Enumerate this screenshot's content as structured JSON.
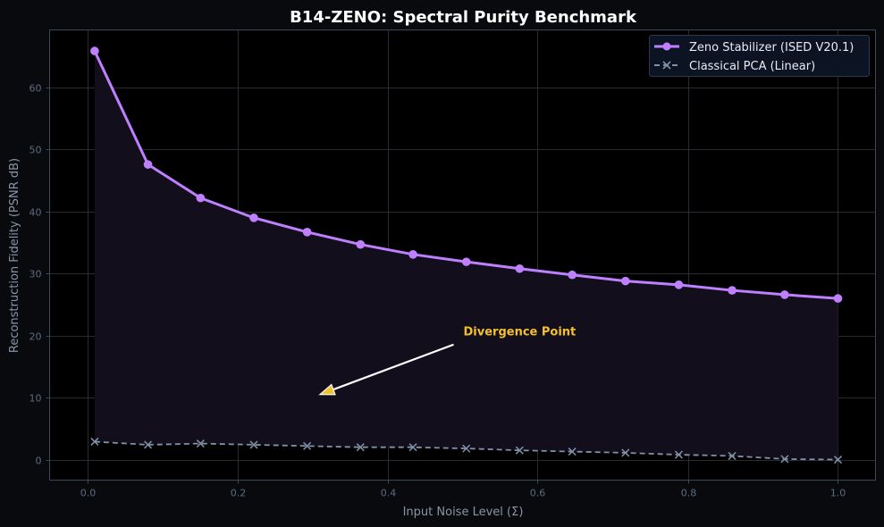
{
  "chart_data": {
    "type": "line",
    "title": "B14-ZENO: Spectral Purity Benchmark",
    "xlabel": "Input Noise Level (Σ)",
    "ylabel": "Reconstruction Fidelity (PSNR dB)",
    "xlim": [
      -0.05,
      1.05
    ],
    "ylim": [
      -3.3,
      69.3
    ],
    "xticks": [
      0.0,
      0.2,
      0.4,
      0.6,
      0.8,
      1.0
    ],
    "xtick_labels": [
      "0.0",
      "0.2",
      "0.4",
      "0.6",
      "0.8",
      "1.0"
    ],
    "yticks": [
      0,
      10,
      20,
      30,
      40,
      50,
      60
    ],
    "ytick_labels": [
      "0",
      "10",
      "20",
      "30",
      "40",
      "50",
      "60"
    ],
    "grid": true,
    "legend_position": "upper right",
    "x": [
      0.01,
      0.081,
      0.151,
      0.222,
      0.293,
      0.364,
      0.434,
      0.505,
      0.576,
      0.646,
      0.717,
      0.788,
      0.859,
      0.929,
      1.0
    ],
    "series": [
      {
        "name": "Zeno Stabilizer (ISED V20.1)",
        "style": "solid",
        "marker": "circle",
        "color": "#bf80ff",
        "fill_under": true,
        "values": [
          65.9,
          47.6,
          42.2,
          39.0,
          36.7,
          34.7,
          33.1,
          31.9,
          30.8,
          29.8,
          28.8,
          28.2,
          27.3,
          26.6,
          26.0
        ]
      },
      {
        "name": "Classical PCA (Linear)",
        "style": "dashed",
        "marker": "x",
        "color": "#8090a6",
        "values": [
          2.9,
          2.4,
          2.6,
          2.4,
          2.2,
          2.0,
          2.0,
          1.8,
          1.5,
          1.3,
          1.1,
          0.8,
          0.6,
          0.1,
          0.0
        ]
      }
    ],
    "annotations": [
      {
        "text": "Divergence Point",
        "text_xy": [
          0.5,
          20
        ],
        "arrow_to": [
          0.31,
          10.5
        ],
        "color": "#f2c12e"
      }
    ]
  },
  "colors": {
    "page_bg": "#080a0e",
    "plot_bg": "#000000",
    "grid": "#2a2a30",
    "spine": "#3a4a5e",
    "fill": "#130e1c"
  }
}
